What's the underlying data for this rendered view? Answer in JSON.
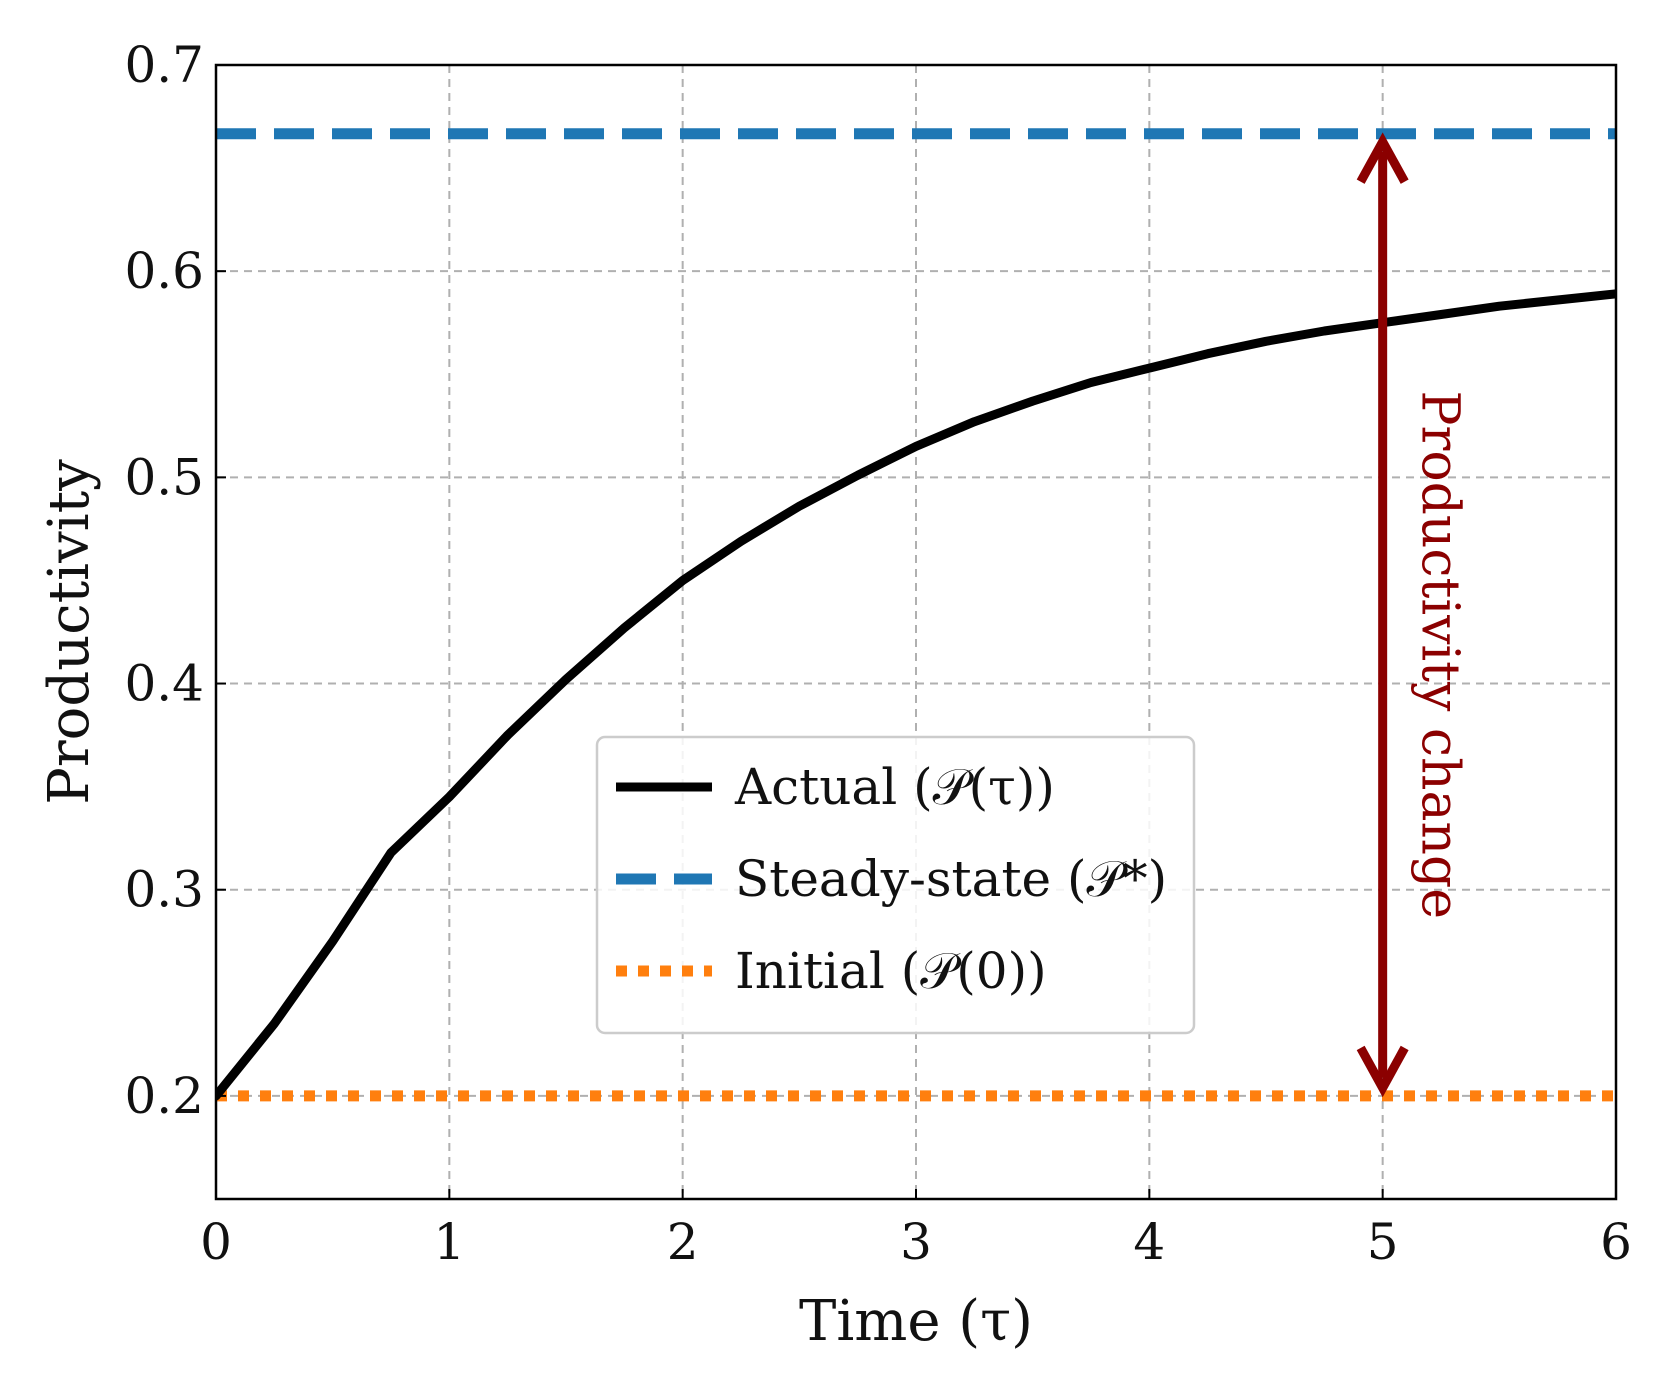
{
  "chart_data": {
    "type": "line",
    "xlabel": "Time (τ)",
    "ylabel": "Productivity",
    "xlim": [
      0,
      6
    ],
    "ylim": [
      0.15,
      0.7
    ],
    "xticks": [
      {
        "value": 0,
        "label": "0"
      },
      {
        "value": 1,
        "label": "1"
      },
      {
        "value": 2,
        "label": "2"
      },
      {
        "value": 3,
        "label": "3"
      },
      {
        "value": 4,
        "label": "4"
      },
      {
        "value": 5,
        "label": "5"
      },
      {
        "value": 6,
        "label": "6"
      }
    ],
    "yticks": [
      {
        "value": 0.2,
        "label": "0.2"
      },
      {
        "value": 0.3,
        "label": "0.3"
      },
      {
        "value": 0.4,
        "label": "0.4"
      },
      {
        "value": 0.5,
        "label": "0.5"
      },
      {
        "value": 0.6,
        "label": "0.6"
      },
      {
        "value": 0.7,
        "label": "0.7"
      }
    ],
    "grid": true,
    "legend_position": "center",
    "series": [
      {
        "name": "Actual (𝒫(τ))",
        "style": "solid",
        "color": "#000000",
        "x": [
          0,
          0.25,
          0.5,
          0.75,
          1.0,
          1.25,
          1.5,
          1.75,
          2.0,
          2.25,
          2.5,
          2.75,
          3.0,
          3.25,
          3.5,
          3.75,
          4.0,
          4.25,
          4.5,
          4.75,
          5.0,
          5.25,
          5.5,
          5.75,
          6.0
        ],
        "y": [
          0.2,
          0.235,
          0.275,
          0.318,
          0.345,
          0.375,
          0.402,
          0.427,
          0.45,
          0.469,
          0.486,
          0.501,
          0.515,
          0.527,
          0.537,
          0.546,
          0.553,
          0.56,
          0.566,
          0.571,
          0.575,
          0.579,
          0.583,
          0.586,
          0.589
        ]
      },
      {
        "name": "Steady-state (𝒫*)",
        "style": "dashed",
        "color": "#1f77b4",
        "x": [
          0,
          6
        ],
        "y": [
          0.6667,
          0.6667
        ]
      },
      {
        "name": "Initial (𝒫(0))",
        "style": "dotted",
        "color": "#ff7f0e",
        "x": [
          0,
          6
        ],
        "y": [
          0.2,
          0.2
        ]
      }
    ],
    "annotations": [
      {
        "text": "Productivity change",
        "x": 5,
        "y_from": 0.2,
        "y_to": 0.6667,
        "color": "#8b0000"
      }
    ]
  }
}
